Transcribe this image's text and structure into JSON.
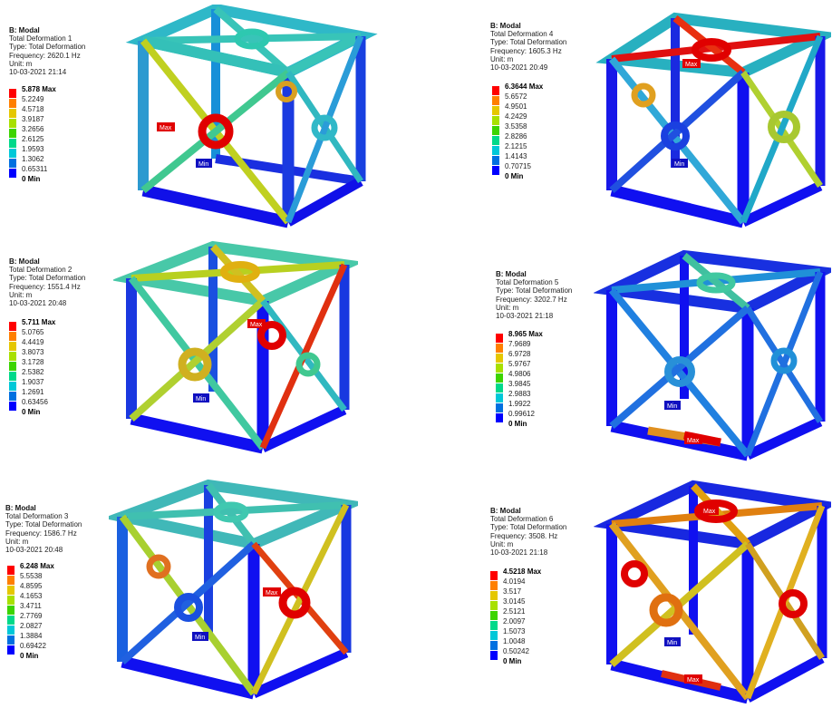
{
  "palette": [
    "#ff0000",
    "#ff7f00",
    "#e5c700",
    "#a8e000",
    "#3cd400",
    "#00d98a",
    "#00c8d8",
    "#0070e0",
    "#0000ff"
  ],
  "min_color": "#0000d0",
  "panels": [
    {
      "header": "B: Modal",
      "title": "Total Deformation 1",
      "type": "Type: Total Deformation",
      "frequency": "Frequency: 2620.1 Hz",
      "unit": "Unit: m",
      "date": "10-03-2021 21:14",
      "legend": [
        "5.878 Max",
        "5.2249",
        "4.5718",
        "3.9187",
        "3.2656",
        "2.6125",
        "1.9593",
        "1.3062",
        "0.65311",
        "0 Min"
      ],
      "max_tag": "Max",
      "min_tag": "Min"
    },
    {
      "header": "B: Modal",
      "title": "Total Deformation 4",
      "type": "Type: Total Deformation",
      "frequency": "Frequency: 1605.3 Hz",
      "unit": "Unit: m",
      "date": "10-03-2021 20:49",
      "legend": [
        "6.3644 Max",
        "5.6572",
        "4.9501",
        "4.2429",
        "3.5358",
        "2.8286",
        "2.1215",
        "1.4143",
        "0.70715",
        "0 Min"
      ],
      "max_tag": "Max",
      "min_tag": "Min"
    },
    {
      "header": "B: Modal",
      "title": "Total Deformation 2",
      "type": "Type: Total Deformation",
      "frequency": "Frequency: 1551.4 Hz",
      "unit": "Unit: m",
      "date": "10-03-2021 20:48",
      "legend": [
        "5.711 Max",
        "5.0765",
        "4.4419",
        "3.8073",
        "3.1728",
        "2.5382",
        "1.9037",
        "1.2691",
        "0.63456",
        "0 Min"
      ],
      "max_tag": "Max",
      "min_tag": "Min"
    },
    {
      "header": "B: Modal",
      "title": "Total Deformation 5",
      "type": "Type: Total Deformation",
      "frequency": "Frequency: 3202.7 Hz",
      "unit": "Unit: m",
      "date": "10-03-2021 21:18",
      "legend": [
        "8.965 Max",
        "7.9689",
        "6.9728",
        "5.9767",
        "4.9806",
        "3.9845",
        "2.9883",
        "1.9922",
        "0.99612",
        "0 Min"
      ],
      "max_tag": "Max",
      "min_tag": "Min"
    },
    {
      "header": "B: Modal",
      "title": "Total Deformation 3",
      "type": "Type: Total Deformation",
      "frequency": "Frequency: 1586.7 Hz",
      "unit": "Unit: m",
      "date": "10-03-2021 20:48",
      "legend": [
        "6.248 Max",
        "5.5538",
        "4.8595",
        "4.1653",
        "3.4711",
        "2.7769",
        "2.0827",
        "1.3884",
        "0.69422",
        "0 Min"
      ],
      "max_tag": "Max",
      "min_tag": "Min"
    },
    {
      "header": "B: Modal",
      "title": "Total Deformation 6",
      "type": "Type: Total Deformation",
      "frequency": "Frequency: 3508. Hz",
      "unit": "Unit: m",
      "date": "10-03-2021 21:18",
      "legend": [
        "4.5218 Max",
        "4.0194",
        "3.517",
        "3.0145",
        "2.5121",
        "2.0097",
        "1.5073",
        "1.0048",
        "0.50242",
        "0 Min"
      ],
      "max_tag": "Max",
      "min_tag": "Min",
      "max_tag_2": "Max"
    }
  ]
}
